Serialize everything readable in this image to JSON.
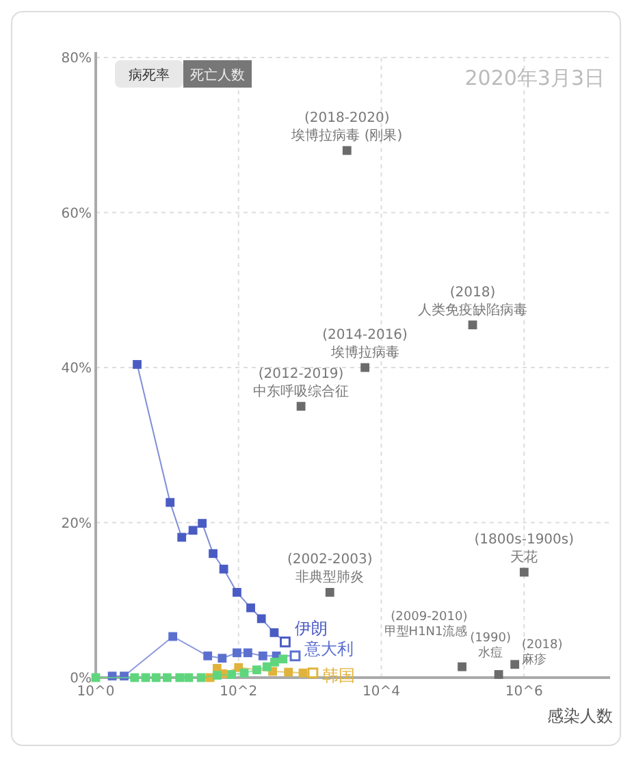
{
  "chart_data": {
    "type": "scatter",
    "title": "2020年3月3日",
    "xlabel": "感染人数",
    "log": "x",
    "xlim": [
      1,
      16000000
    ],
    "ylim": [
      0,
      80
    ],
    "xticks": [
      {
        "value": 1,
        "label": "10^0"
      },
      {
        "value": 100,
        "label": "10^2"
      },
      {
        "value": 10000,
        "label": "10^4"
      },
      {
        "value": 1000000,
        "label": "10^6"
      }
    ],
    "yticks": [
      {
        "value": 0,
        "label": "0%"
      },
      {
        "value": 20,
        "label": "20%"
      },
      {
        "value": 40,
        "label": "40%"
      },
      {
        "value": 60,
        "label": "60%"
      },
      {
        "value": 80,
        "label": "80%"
      }
    ],
    "grid": true,
    "legend": false,
    "marker": "square",
    "series": [
      {
        "type": "scatter",
        "color": "#6b6b6b",
        "x": [
          3300,
          5900,
          750,
          190000,
          1900,
          1000000,
          135000,
          440000,
          740000
        ],
        "values": [
          68,
          40,
          35,
          45.5,
          11,
          13.6,
          1.4,
          0.4,
          1.7
        ]
      },
      {
        "type": "line",
        "name": "伊朗",
        "color": "#4a5cc4",
        "x": [
          3.8,
          11,
          16,
          23,
          31,
          44,
          62,
          95,
          148,
          209,
          316,
          450
        ],
        "values": [
          40.4,
          22.6,
          18.1,
          19,
          19.9,
          16,
          14,
          11,
          9,
          7.6,
          5.8,
          4.6
        ]
      },
      {
        "type": "line",
        "name": "意大利",
        "color": "#5b6fcf",
        "x": [
          1.7,
          2.5,
          12,
          37,
          59,
          95,
          135,
          219,
          339,
          620
        ],
        "values": [
          0.2,
          0.2,
          5.3,
          2.8,
          2.5,
          3.2,
          3.2,
          2.8,
          2.8,
          2.8
        ]
      },
      {
        "type": "line",
        "name": "韩国",
        "color": "#e0b43c",
        "x": [
          40,
          50,
          60,
          100,
          300,
          500,
          800,
          1100
        ],
        "values": [
          0,
          1.2,
          0.5,
          1.3,
          0.8,
          0.7,
          0.6,
          0.6
        ]
      },
      {
        "type": "line",
        "color": "#5fd67e",
        "x": [
          1,
          3.5,
          5,
          7,
          10,
          15,
          20,
          30,
          50,
          80,
          120,
          180,
          250,
          320,
          420
        ],
        "values": [
          0,
          0,
          0,
          0,
          0,
          0,
          0,
          0,
          0.3,
          0.4,
          0.6,
          1,
          1.4,
          2,
          2.4
        ]
      }
    ],
    "annotations": [
      {
        "text": "(2018-2020)\n埃博拉病毒 (刚果)",
        "x": 3300,
        "y": 68
      },
      {
        "text": "(2014-2016)\n埃博拉病毒",
        "x": 5900,
        "y": 40
      },
      {
        "text": "(2012-2019)\n中东呼吸综合征",
        "x": 750,
        "y": 35
      },
      {
        "text": "(2018)\n人类免疫缺陷病毒",
        "x": 190000,
        "y": 45.5
      },
      {
        "text": "(2002-2003)\n非典型肺炎",
        "x": 1900,
        "y": 11
      },
      {
        "text": "(1800s-1900s)\n天花",
        "x": 1000000,
        "y": 13.6
      },
      {
        "text": "(2009-2010)\n甲型H1N1流感",
        "x": 135000,
        "y": 1.4
      },
      {
        "text": "(1990)\n水痘",
        "x": 440000,
        "y": 0.4
      },
      {
        "text": "(2018)\n麻疹",
        "x": 740000,
        "y": 1.7
      },
      "病死率",
      "死亡人数"
    ]
  }
}
